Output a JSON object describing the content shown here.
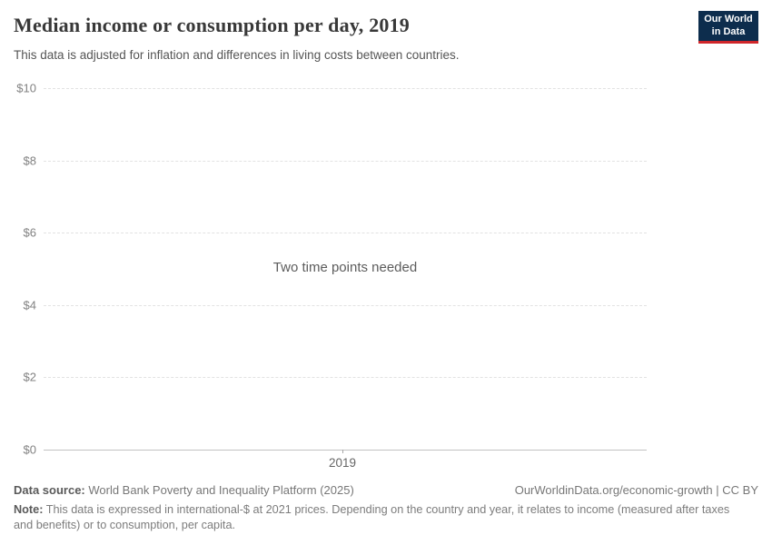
{
  "header": {
    "title": "Median income or consumption per day, 2019",
    "subtitle": "This data is adjusted for inflation and differences in living costs between countries.",
    "logo": {
      "line1": "Our World",
      "line2": "in Data"
    }
  },
  "chart": {
    "empty_state_message": "Two time points needed",
    "y_axis": {
      "ticks": [
        {
          "label": "$10",
          "value": 10
        },
        {
          "label": "$8",
          "value": 8
        },
        {
          "label": "$6",
          "value": 6
        },
        {
          "label": "$4",
          "value": 4
        },
        {
          "label": "$2",
          "value": 2
        },
        {
          "label": "$0",
          "value": 0
        }
      ]
    },
    "x_axis": {
      "ticks": [
        {
          "label": "2019"
        }
      ]
    }
  },
  "chart_data": {
    "type": "line",
    "title": "Median income or consumption per day, 2019",
    "subtitle": "This data is adjusted for inflation and differences in living costs between countries.",
    "x": [
      2019
    ],
    "xtick_labels": [
      "2019"
    ],
    "ytick_labels": [
      "$0",
      "$2",
      "$4",
      "$6",
      "$8",
      "$10"
    ],
    "ylim": [
      0,
      10
    ],
    "xlabel": "",
    "ylabel": "",
    "grid": true,
    "series": [],
    "annotation": "Two time points needed"
  },
  "footer": {
    "datasource_label": "Data source:",
    "datasource_value": " World Bank Poverty and Inequality Platform (2025)",
    "link": "OurWorldinData.org/economic-growth | CC BY",
    "note_label": "Note:",
    "note_value": " This data is expressed in international-$ at 2021 prices. Depending on the country and year, it relates to income (measured after taxes and benefits) or to consumption, per capita."
  },
  "colors": {
    "logo_navy": "#0d2d4d",
    "logo_red": "#d0262a",
    "gridline": "#e2e2e2",
    "axis_line": "#c2c2c2",
    "title_text": "#383838",
    "muted_text": "#777777"
  }
}
